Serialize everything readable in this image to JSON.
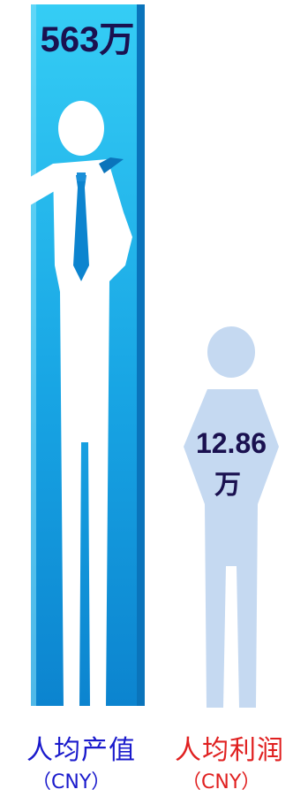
{
  "chart_data": {
    "type": "bar",
    "categories": [
      "人均产值",
      "人均利润"
    ],
    "units": [
      "（CNY）",
      "（CNY）"
    ],
    "values": [
      563,
      12.86
    ],
    "value_labels": [
      "563万",
      "12.86万"
    ],
    "value_label_parts": [
      [
        "563万"
      ],
      [
        "12.86",
        "万"
      ]
    ],
    "colors": {
      "bar1_top": "#2ec6f2",
      "bar1_bottom": "#0f8fd6",
      "bar1_side": "#0a73b8",
      "bar2": "#c5d9f1",
      "label1": "#1a1acc",
      "label2": "#e02020",
      "value_text": "#1a1150"
    }
  }
}
